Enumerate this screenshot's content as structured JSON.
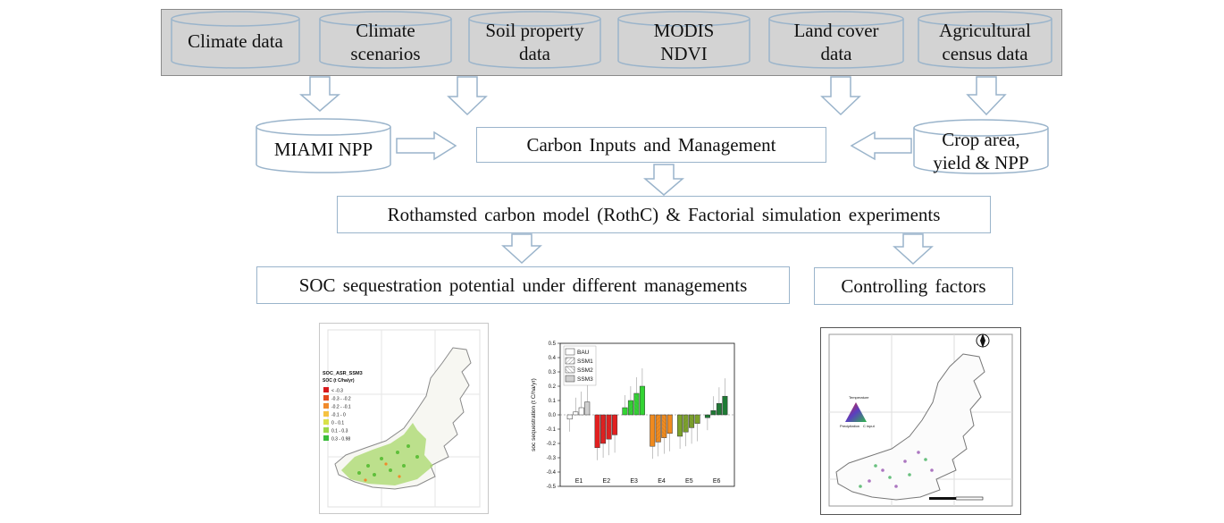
{
  "sources": [
    {
      "id": "climate-data",
      "lines": [
        "Climate data"
      ]
    },
    {
      "id": "climate-scenarios",
      "lines": [
        "Climate",
        "scenarios"
      ]
    },
    {
      "id": "soil-property-data",
      "lines": [
        "Soil property",
        "data"
      ]
    },
    {
      "id": "modis-ndvi",
      "lines": [
        "MODIS",
        "NDVI"
      ]
    },
    {
      "id": "land-cover-data",
      "lines": [
        "Land cover",
        "data"
      ]
    },
    {
      "id": "agricultural-census-data",
      "lines": [
        "Agricultural",
        "census data"
      ]
    }
  ],
  "miami_npp": {
    "label": "MIAMI NPP"
  },
  "crop_area": {
    "lines": [
      "Crop area,",
      "yield & NPP"
    ]
  },
  "carbon_inputs": {
    "label": "Carbon Inputs and Management"
  },
  "rothc": {
    "label": "Rothamsted carbon model (RothC)  & Factorial simulation experiments"
  },
  "soc_potential": {
    "label": "SOC sequestration potential under different managements"
  },
  "controlling": {
    "label": "Controlling factors"
  },
  "map_left": {
    "legend_title": "SOC_ASR_SSM3",
    "legend_sub": "SOC (t C/ha/yr)",
    "legend_items": [
      {
        "label": "< -0.3",
        "color": "#d7191c"
      },
      {
        "label": "-0.3 - -0.2",
        "color": "#e34a1f"
      },
      {
        "label": "-0.2 - -0.1",
        "color": "#f08a2c"
      },
      {
        "label": "-0.1 - 0",
        "color": "#f5c242"
      },
      {
        "label": "0 - 0.1",
        "color": "#d9e14a"
      },
      {
        "label": "0.1 - 0.3",
        "color": "#9ad84a"
      },
      {
        "label": "0.3 - 0.98",
        "color": "#3bbd3b"
      }
    ]
  },
  "chart_data": {
    "type": "bar",
    "xlabel": "",
    "ylabel": "soc sequestration (t C/ha/yr)",
    "ylim": [
      -0.5,
      0.5
    ],
    "yticks": [
      "-0.5",
      "-0.4",
      "-0.3",
      "-0.2",
      "-0.1",
      "0.0",
      "0.1",
      "0.2",
      "0.3",
      "0.4",
      "0.5"
    ],
    "categories": [
      "E1",
      "E2",
      "E3",
      "E4",
      "E5",
      "E6"
    ],
    "legend": [
      "BAU",
      "SSM1",
      "SSM2",
      "SSM3"
    ],
    "group_colors": [
      "#ffffff",
      "#e21f1f",
      "#33d433",
      "#f08a1e",
      "#7ca12a",
      "#1e7a34"
    ],
    "series": [
      {
        "name": "BAU",
        "values": [
          -0.03,
          -0.23,
          0.05,
          -0.22,
          -0.15,
          -0.02
        ]
      },
      {
        "name": "SSM1",
        "values": [
          0.02,
          -0.2,
          0.1,
          -0.19,
          -0.12,
          0.03
        ]
      },
      {
        "name": "SSM2",
        "values": [
          0.05,
          -0.17,
          0.15,
          -0.16,
          -0.09,
          0.08
        ]
      },
      {
        "name": "SSM3",
        "values": [
          0.09,
          -0.14,
          0.2,
          -0.13,
          -0.06,
          0.13
        ]
      }
    ]
  },
  "map_right": {
    "triangle_top": "Temperature",
    "triangle_left": "Precipitation",
    "triangle_right": "C input"
  }
}
